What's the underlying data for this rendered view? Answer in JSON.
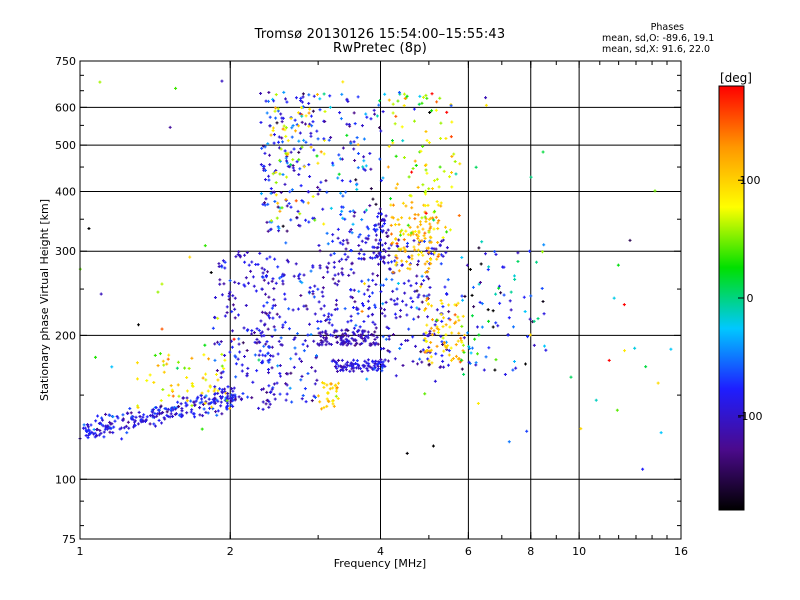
{
  "title": {
    "line1": "Tromsø 20130126 15:54:00–15:55:43",
    "line2": "RwPretec (8p)"
  },
  "stats": {
    "heading": "Phases",
    "o_line": "mean, sd,O: -89.6, 19.1",
    "x_line": "mean, sd,X:  91.6, 22.0"
  },
  "colorbar": {
    "unit_label": "[deg]",
    "range": [
      -180,
      180
    ],
    "ticks": [
      {
        "value": 100,
        "label": "100"
      },
      {
        "value": 0,
        "label": "0"
      },
      {
        "value": -100,
        "label": "-100"
      }
    ],
    "colors": [
      "#000000",
      "#4b0a8c",
      "#1e1eff",
      "#00c8ff",
      "#00e000",
      "#ffff00",
      "#ff9600",
      "#ff0000"
    ]
  },
  "chart_data": {
    "type": "scatter",
    "xlabel": "Frequency [MHz]",
    "ylabel": "Stationary phase Virtual Height [km]",
    "xscale": "log",
    "yscale": "log",
    "xlim": [
      1,
      16
    ],
    "ylim": [
      75,
      750
    ],
    "x_ticks": [
      {
        "value": 1,
        "label": "1"
      },
      {
        "value": 2,
        "label": "2"
      },
      {
        "value": 4,
        "label": "4"
      },
      {
        "value": 6,
        "label": "6"
      },
      {
        "value": 8,
        "label": "8"
      },
      {
        "value": 10,
        "label": "10"
      },
      {
        "value": 16,
        "label": "16"
      }
    ],
    "y_ticks": [
      {
        "value": 75,
        "label": "75"
      },
      {
        "value": 100,
        "label": "100"
      },
      {
        "value": 200,
        "label": "200"
      },
      {
        "value": 300,
        "label": "300"
      },
      {
        "value": 400,
        "label": "400"
      },
      {
        "value": 500,
        "label": "500"
      },
      {
        "value": 600,
        "label": "600"
      },
      {
        "value": 750,
        "label": "750"
      }
    ],
    "grid_x": [
      2,
      4,
      6,
      8,
      10
    ],
    "grid_y": [
      100,
      200,
      300,
      400,
      500,
      600
    ],
    "point_groups": [
      {
        "x_range": [
          1.0,
          2.05
        ],
        "y_range": [
          126,
          148
        ],
        "trend": "rising",
        "count": 260,
        "phase_mean": -90,
        "phase_sd": 18
      },
      {
        "x_range": [
          1.3,
          2.0
        ],
        "y_range": [
          140,
          185
        ],
        "count": 60,
        "phase_mean": 90,
        "phase_sd": 25
      },
      {
        "x_range": [
          1.85,
          2.45
        ],
        "y_range": [
          140,
          300
        ],
        "count": 170,
        "phase_mean": -95,
        "phase_sd": 20
      },
      {
        "x_range": [
          2.3,
          3.0
        ],
        "y_range": [
          145,
          290
        ],
        "count": 140,
        "phase_mean": -90,
        "phase_sd": 25
      },
      {
        "x_range": [
          2.3,
          3.0
        ],
        "y_range": [
          330,
          650
        ],
        "count": 150,
        "phase_mean": -85,
        "phase_sd": 30
      },
      {
        "x_range": [
          2.4,
          3.1
        ],
        "y_range": [
          340,
          640
        ],
        "count": 60,
        "phase_mean": 90,
        "phase_sd": 25
      },
      {
        "x_range": [
          3.0,
          4.0
        ],
        "y_range": [
          190,
          205
        ],
        "count": 110,
        "phase_mean": -110,
        "phase_sd": 15
      },
      {
        "x_range": [
          3.2,
          4.1
        ],
        "y_range": [
          168,
          178
        ],
        "count": 90,
        "phase_mean": -90,
        "phase_sd": 15
      },
      {
        "x_range": [
          3.0,
          4.0
        ],
        "y_range": [
          205,
          340
        ],
        "count": 140,
        "phase_mean": -90,
        "phase_sd": 20
      },
      {
        "x_range": [
          3.0,
          4.1
        ],
        "y_range": [
          340,
          640
        ],
        "count": 100,
        "phase_mean": -75,
        "phase_sd": 40
      },
      {
        "x_range": [
          3.0,
          3.3
        ],
        "y_range": [
          140,
          160
        ],
        "count": 30,
        "phase_mean": 95,
        "phase_sd": 15
      },
      {
        "x_range": [
          3.85,
          4.15
        ],
        "y_range": [
          280,
          360
        ],
        "count": 45,
        "phase_mean": -95,
        "phase_sd": 20
      },
      {
        "x_range": [
          4.0,
          5.5
        ],
        "y_range": [
          170,
          320
        ],
        "count": 170,
        "phase_mean": -95,
        "phase_sd": 25
      },
      {
        "x_range": [
          4.2,
          5.3
        ],
        "y_range": [
          270,
          380
        ],
        "count": 110,
        "phase_mean": 110,
        "phase_sd": 15
      },
      {
        "x_range": [
          4.1,
          5.8
        ],
        "y_range": [
          320,
          650
        ],
        "count": 100,
        "phase_mean": 70,
        "phase_sd": 45
      },
      {
        "x_range": [
          4.9,
          5.9
        ],
        "y_range": [
          175,
          240
        ],
        "count": 80,
        "phase_mean": 100,
        "phase_sd": 25
      },
      {
        "x_range": [
          5.8,
          8.6
        ],
        "y_range": [
          165,
          320
        ],
        "count": 90,
        "phase_mean": -60,
        "phase_sd": 70
      },
      {
        "x_range": [
          1.0,
          16.0
        ],
        "y_range": [
          100,
          700
        ],
        "count": 80,
        "phase_mean": 0,
        "phase_sd": 100
      }
    ]
  }
}
